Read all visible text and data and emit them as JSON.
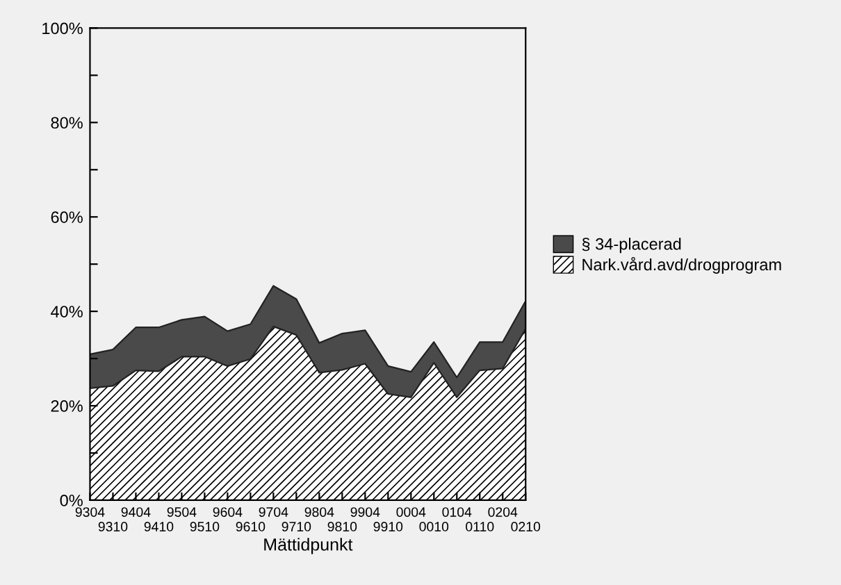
{
  "chart_data": {
    "type": "area",
    "stacked": true,
    "xlabel": "Mättidpunkt",
    "categories": [
      "9304",
      "9310",
      "9404",
      "9410",
      "9504",
      "9510",
      "9604",
      "9610",
      "9704",
      "9710",
      "9804",
      "9810",
      "9904",
      "9910",
      "0004",
      "0010",
      "0104",
      "0110",
      "0204",
      "0210"
    ],
    "series": [
      {
        "name": "Nark.vård.avd/drogprogram",
        "color": "#ffffff",
        "values": [
          23.7,
          24.2,
          27.5,
          27.3,
          30.4,
          30.4,
          28.4,
          29.9,
          36.8,
          35.0,
          27.0,
          27.6,
          28.9,
          22.5,
          21.8,
          29.1,
          21.8,
          27.5,
          27.9,
          36.3
        ]
      },
      {
        "name": "§ 34-placerad",
        "color": "#4a4a4a",
        "values": [
          7.2,
          7.7,
          9.1,
          9.3,
          7.8,
          8.5,
          7.4,
          7.4,
          8.6,
          7.6,
          6.3,
          7.7,
          7.1,
          5.9,
          5.4,
          4.4,
          4.2,
          6.0,
          5.6,
          5.9
        ]
      }
    ],
    "ylim": [
      0,
      100
    ],
    "yticks": [
      {
        "value": 0,
        "label": "0%"
      },
      {
        "value": 10,
        "label": null
      },
      {
        "value": 20,
        "label": "20%"
      },
      {
        "value": 30,
        "label": null
      },
      {
        "value": 40,
        "label": "40%"
      },
      {
        "value": 50,
        "label": null
      },
      {
        "value": 60,
        "label": "60%"
      },
      {
        "value": 70,
        "label": null
      },
      {
        "value": 80,
        "label": "80%"
      },
      {
        "value": 90,
        "label": null
      },
      {
        "value": 100,
        "label": "100%"
      }
    ],
    "grid": false,
    "legend": "right"
  }
}
